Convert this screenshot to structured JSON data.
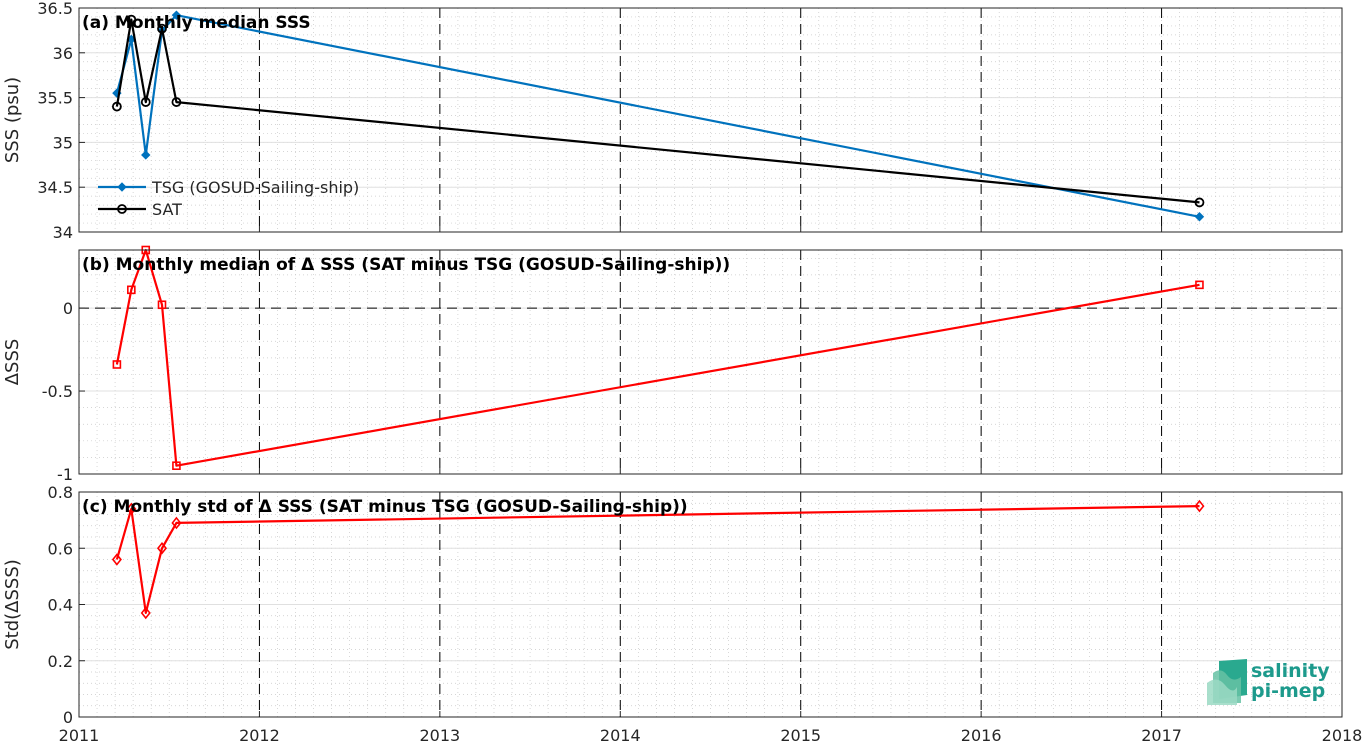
{
  "chart_data": [
    {
      "type": "line",
      "title": "(a) Monthly median SSS",
      "ylabel": "SSS (psu)",
      "xlim": [
        2011,
        2018
      ],
      "ylim": [
        34,
        36.5
      ],
      "yticks": [
        "34",
        "34.5",
        "35",
        "35.5",
        "36",
        "36.5"
      ],
      "ytick_values": [
        34,
        34.5,
        35,
        35.5,
        36,
        36.5
      ],
      "grid": true,
      "legend_position": "bottom-left",
      "series": [
        {
          "name": "TSG (GOSUD-Sailing-ship)",
          "color": "#0072bd",
          "marker": "diamond",
          "x": [
            2011.21,
            2011.29,
            2011.37,
            2011.46,
            2011.54,
            2017.21
          ],
          "y": [
            35.55,
            36.15,
            34.86,
            36.25,
            36.42,
            34.17
          ]
        },
        {
          "name": "SAT",
          "color": "#000000",
          "marker": "circle",
          "x": [
            2011.21,
            2011.29,
            2011.37,
            2011.46,
            2011.54,
            2017.21
          ],
          "y": [
            35.4,
            36.37,
            35.45,
            36.27,
            35.45,
            34.33
          ]
        }
      ]
    },
    {
      "type": "line",
      "title": "(b) Monthly median of Δ SSS (SAT minus TSG (GOSUD-Sailing-ship))",
      "ylabel": "ΔSSS",
      "xlim": [
        2011,
        2018
      ],
      "ylim": [
        -1,
        0.35
      ],
      "yticks": [
        "-1",
        "-0.5",
        "0"
      ],
      "ytick_values": [
        -1,
        -0.5,
        0
      ],
      "zero_line": true,
      "grid": true,
      "series": [
        {
          "color": "#ff0000",
          "marker": "square",
          "x": [
            2011.21,
            2011.29,
            2011.37,
            2011.46,
            2011.54,
            2017.21
          ],
          "y": [
            -0.34,
            0.11,
            0.35,
            0.02,
            -0.95,
            0.14
          ]
        }
      ]
    },
    {
      "type": "line",
      "title": "(c) Monthly std of Δ SSS (SAT minus TSG (GOSUD-Sailing-ship))",
      "ylabel": "Std(ΔSSS)",
      "xlim": [
        2011,
        2018
      ],
      "ylim": [
        0,
        0.8
      ],
      "yticks": [
        "0",
        "0.2",
        "0.4",
        "0.6",
        "0.8"
      ],
      "ytick_values": [
        0,
        0.2,
        0.4,
        0.6,
        0.8
      ],
      "xticks": [
        "2011",
        "2012",
        "2013",
        "2014",
        "2015",
        "2016",
        "2017",
        "2018"
      ],
      "xtick_values": [
        2011,
        2012,
        2013,
        2014,
        2015,
        2016,
        2017,
        2018
      ],
      "grid": true,
      "series": [
        {
          "color": "#ff0000",
          "marker": "diamond-open",
          "x": [
            2011.21,
            2011.29,
            2011.37,
            2011.46,
            2011.54,
            2017.21
          ],
          "y": [
            0.56,
            0.74,
            0.37,
            0.6,
            0.69,
            0.75
          ]
        }
      ]
    }
  ],
  "logo": {
    "line1": "salinity",
    "line2": "pi-mep"
  }
}
